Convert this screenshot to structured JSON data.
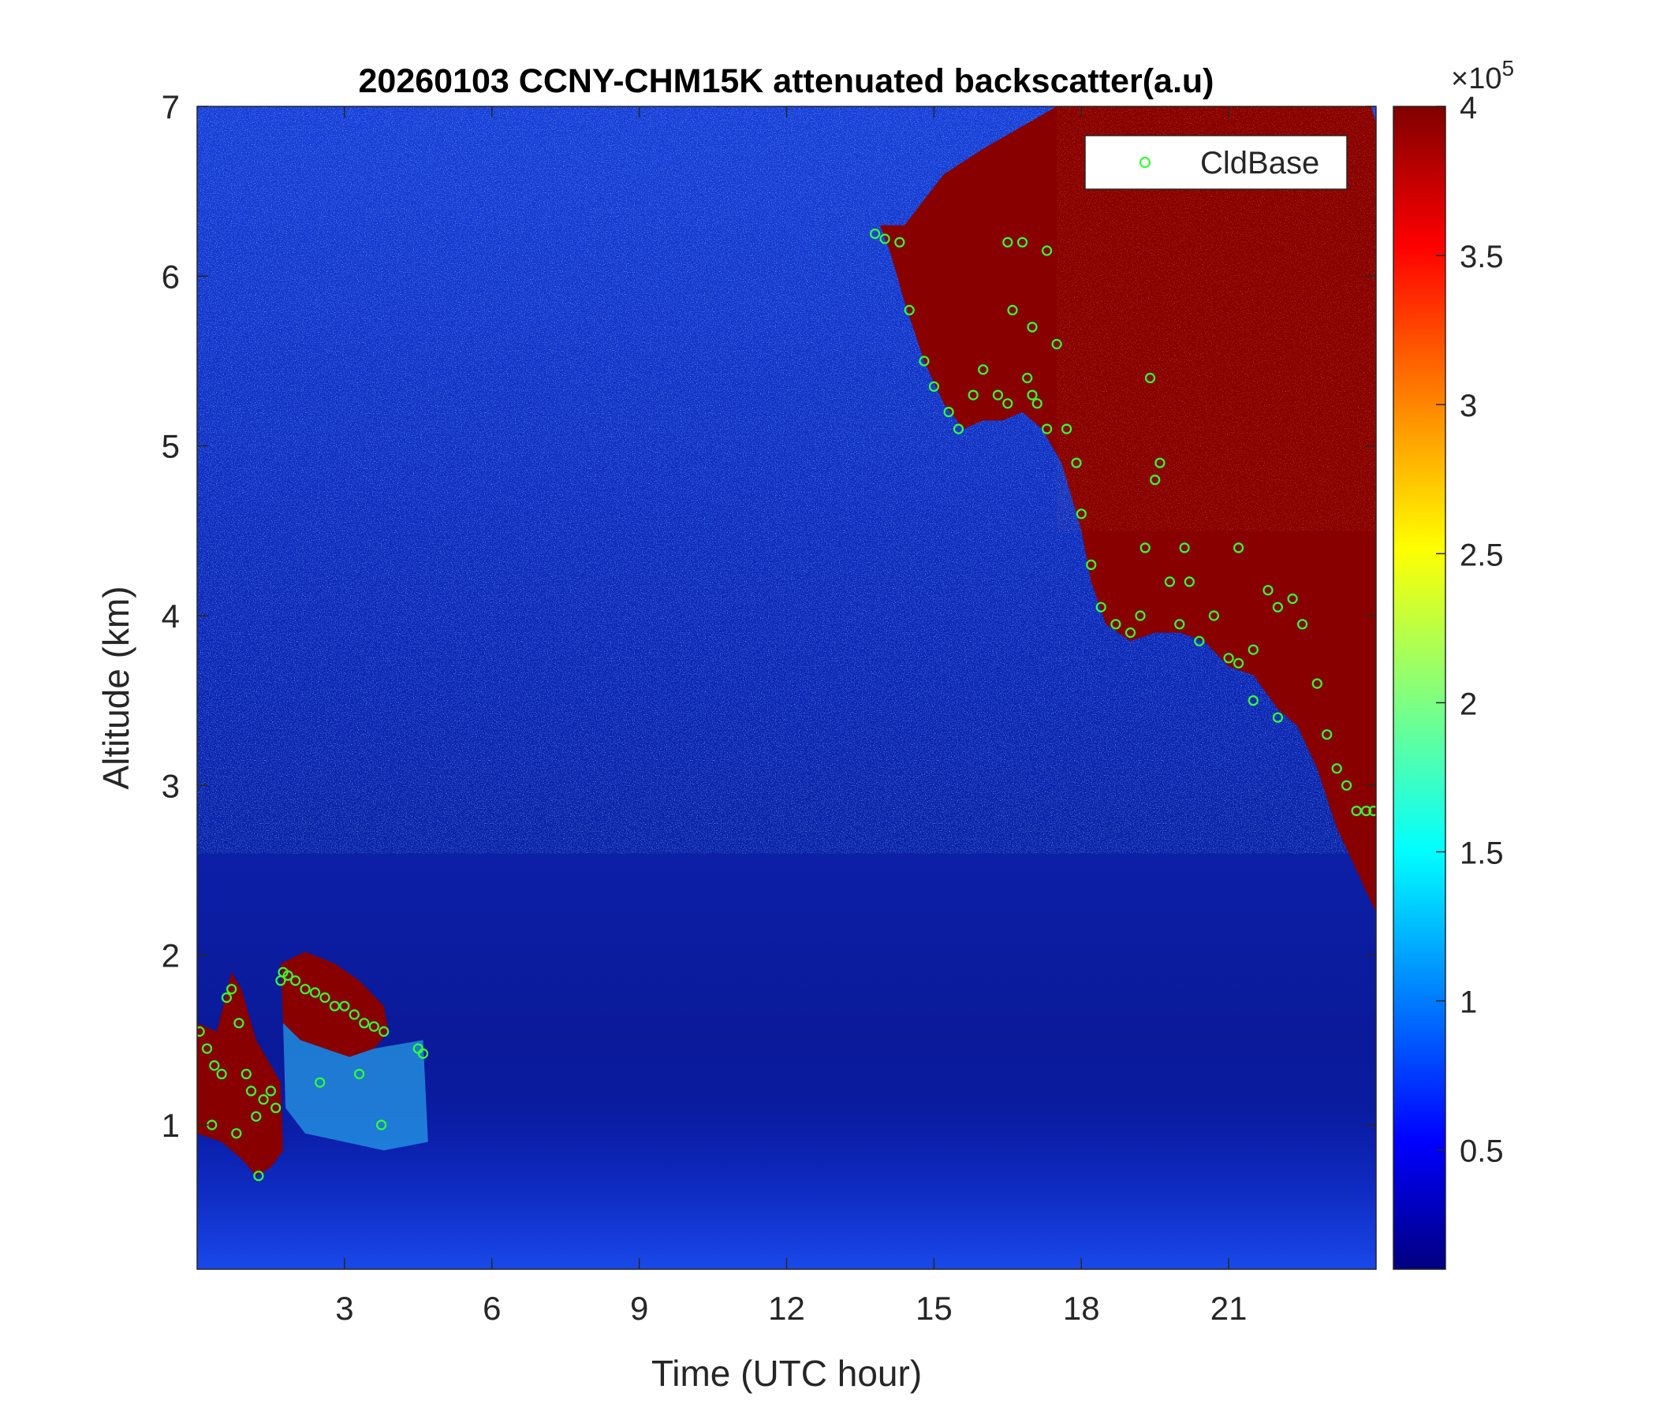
{
  "chart_data": {
    "type": "heatmap",
    "title": "20260103 CCNY-CHM15K attenuated backscatter(a.u)",
    "xlabel": "Time (UTC hour)",
    "ylabel": "Altitude (km)",
    "xlim": [
      0,
      24
    ],
    "ylim": [
      0.15,
      7
    ],
    "x_ticks": [
      3,
      6,
      9,
      12,
      15,
      18,
      21
    ],
    "y_ticks": [
      1,
      2,
      3,
      4,
      5,
      6,
      7
    ],
    "colorbar": {
      "range": [
        0.1,
        4
      ],
      "ticks": [
        0.5,
        1,
        1.5,
        2,
        2.5,
        3,
        3.5,
        4
      ],
      "exponent_label": "×10",
      "exponent_power": "5",
      "colormap": "jet"
    },
    "legend": {
      "placement": "top-right",
      "entries": [
        "CldBase"
      ]
    },
    "colors": {
      "cloud_base_marker": "#33ff33",
      "background_low": "#000088",
      "saturated": "#880000"
    },
    "series": [
      {
        "name": "CldBase",
        "marker": "circle",
        "x": [
          0.05,
          0.2,
          0.35,
          0.5,
          0.6,
          0.7,
          0.85,
          1.0,
          1.1,
          1.2,
          1.35,
          1.5,
          1.6,
          1.7,
          1.75,
          1.85,
          2.0,
          2.2,
          2.4,
          2.6,
          2.8,
          3.0,
          3.2,
          3.4,
          3.6,
          3.8,
          4.5,
          4.6,
          0.3,
          0.8,
          1.25,
          2.5,
          3.3,
          3.75,
          13.8,
          14.0,
          14.3,
          14.5,
          14.8,
          15.0,
          15.3,
          15.5,
          15.8,
          16.0,
          16.3,
          16.5,
          16.6,
          16.8,
          17.0,
          17.1,
          17.3,
          17.5,
          17.7,
          17.9,
          18.0,
          18.2,
          18.4,
          18.7,
          19.0,
          19.2,
          19.3,
          19.5,
          19.8,
          20.0,
          20.2,
          20.4,
          20.7,
          21.0,
          21.2,
          21.5,
          21.8,
          22.0,
          22.3,
          22.5,
          22.8,
          23.0,
          23.2,
          23.4,
          23.6,
          23.8,
          23.95,
          16.5,
          16.9,
          17.0,
          17.3,
          19.4,
          19.6,
          20.1,
          21.2,
          21.5,
          22.0
        ],
        "y": [
          1.55,
          1.45,
          1.35,
          1.3,
          1.75,
          1.8,
          1.6,
          1.3,
          1.2,
          1.05,
          1.15,
          1.2,
          1.1,
          1.85,
          1.9,
          1.88,
          1.85,
          1.8,
          1.78,
          1.75,
          1.7,
          1.7,
          1.65,
          1.6,
          1.58,
          1.55,
          1.45,
          1.42,
          1.0,
          0.95,
          0.7,
          1.25,
          1.3,
          1.0,
          6.25,
          6.22,
          6.2,
          5.8,
          5.5,
          5.35,
          5.2,
          5.1,
          5.3,
          5.45,
          5.3,
          5.25,
          5.8,
          6.2,
          5.3,
          5.25,
          6.15,
          5.6,
          5.1,
          4.9,
          4.6,
          4.3,
          4.05,
          3.95,
          3.9,
          4.0,
          4.4,
          4.8,
          4.2,
          3.95,
          4.2,
          3.85,
          4.0,
          3.75,
          3.72,
          3.8,
          4.15,
          4.05,
          4.1,
          3.95,
          3.6,
          3.3,
          3.1,
          3.0,
          2.85,
          2.85,
          2.85,
          6.2,
          5.4,
          5.7,
          5.1,
          5.4,
          4.9,
          4.4,
          4.4,
          3.5,
          3.4
        ]
      }
    ]
  }
}
